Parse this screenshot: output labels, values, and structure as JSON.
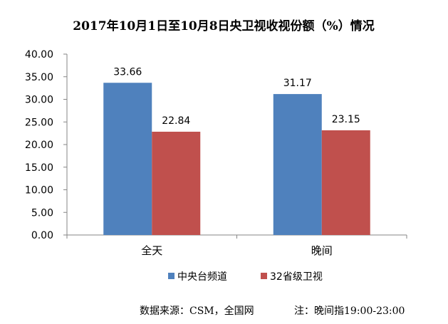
{
  "chart_data": {
    "type": "bar",
    "title": "2017年10月1日至10月8日央卫视收视份额（%）情况",
    "categories": [
      "全天",
      "晚间"
    ],
    "series": [
      {
        "name": "中央台频道",
        "color": "#4F81BD",
        "values": [
          33.66,
          31.17
        ]
      },
      {
        "name": "32省级卫视",
        "color": "#C0504D",
        "values": [
          22.84,
          23.15
        ]
      }
    ],
    "data_labels": [
      [
        "33.66",
        "31.17"
      ],
      [
        "22.84",
        "23.15"
      ]
    ],
    "ylim": [
      0,
      40
    ],
    "yticks": [
      "0.00",
      "5.00",
      "10.00",
      "15.00",
      "20.00",
      "25.00",
      "30.00",
      "35.00",
      "40.00"
    ],
    "legend_position": "bottom",
    "grid": false
  },
  "footer": {
    "source": "数据来源：CSM，全国网",
    "note": "注：晚间指19:00-23:00"
  }
}
